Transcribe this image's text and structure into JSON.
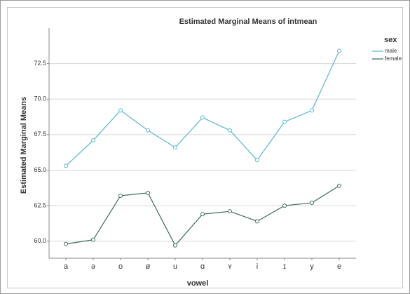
{
  "chart_data": {
    "type": "line",
    "title": "Estimated Marginal Means of intmean",
    "x_label": "vowel",
    "y_label": "Estimated Marginal Means",
    "legend_title": "sex",
    "categories": [
      "a",
      "ə",
      "o",
      "ø",
      "u",
      "ɑ",
      "ʏ",
      "i",
      "ɪ",
      "y",
      "e"
    ],
    "series": [
      {
        "name": "male",
        "color": "#5ab4d6",
        "values": [
          65.3,
          67.1,
          69.2,
          67.8,
          66.6,
          68.7,
          67.8,
          65.7,
          68.4,
          69.2,
          73.4
        ]
      },
      {
        "name": "female",
        "color": "#3d6b5d",
        "values": [
          59.8,
          60.1,
          63.2,
          63.4,
          59.7,
          61.9,
          62.1,
          61.4,
          62.5,
          62.7,
          63.9
        ]
      }
    ],
    "ylim": [
      58.8,
      75.0
    ],
    "yticks": [
      {
        "value": 60,
        "label": "60.0"
      },
      62.5,
      {
        "value": 65,
        "label": "65.0"
      },
      67.5,
      {
        "value": 70,
        "label": "70.0"
      },
      72.5
    ],
    "grid": true
  }
}
